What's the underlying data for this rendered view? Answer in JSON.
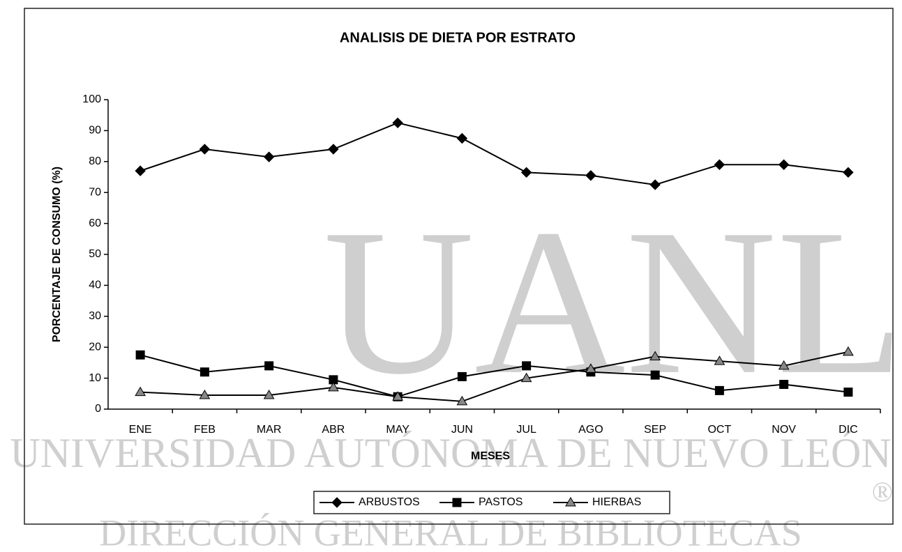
{
  "chart_data": {
    "type": "line",
    "title": "ANALISIS DE DIETA POR ESTRATO",
    "x_label": "MESES",
    "y_label": "PORCENTAJE DE CONSUMO (%)",
    "categories": [
      "ENE",
      "FEB",
      "MAR",
      "ABR",
      "MAY",
      "JUN",
      "JUL",
      "AGO",
      "SEP",
      "OCT",
      "NOV",
      "DIC"
    ],
    "series": [
      {
        "name": "ARBUSTOS",
        "color": "#000000",
        "marker": "diamond",
        "values": [
          77,
          84,
          81.5,
          84,
          92.5,
          87.5,
          76.5,
          75.5,
          72.5,
          79,
          79,
          76.5
        ]
      },
      {
        "name": "PASTOS",
        "color": "#000000",
        "marker": "square",
        "values": [
          17.5,
          12,
          14,
          9.5,
          4,
          10.5,
          14,
          12,
          11,
          6,
          8,
          5.5
        ]
      },
      {
        "name": "HIERBAS",
        "color": "#000000",
        "marker": "triangle",
        "values": [
          5.5,
          4.5,
          4.5,
          7,
          4,
          2.5,
          10,
          13,
          17,
          15.5,
          14,
          18.5
        ]
      }
    ],
    "ylim": [
      0,
      100
    ],
    "yticks": [
      0,
      10,
      20,
      30,
      40,
      50,
      60,
      70,
      80,
      90,
      100
    ],
    "legend": "bottom"
  },
  "watermark": {
    "logo": "UANL",
    "line1": "UNIVERSIDAD AUTÓNOMA DE NUEVO LEÓN",
    "line2": "DIRECCIÓN GENERAL DE BIBLIOTECAS",
    "mark": "®"
  }
}
